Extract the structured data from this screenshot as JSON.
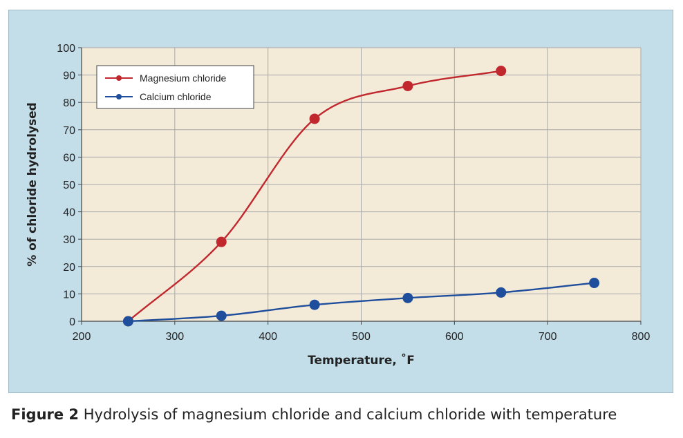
{
  "caption": {
    "label": "Figure 2",
    "text": "Hydrolysis of magnesium chloride and calcium chloride with temperature"
  },
  "colors": {
    "panel_bg": "#c3dde9",
    "plot_bg": "#f3ead8",
    "grid": "#a8a8a8",
    "magnesium": "#c0282e",
    "calcium": "#1f4e9c"
  },
  "chart_data": {
    "type": "line",
    "title": "",
    "xlabel": "Temperature, ˚F",
    "ylabel": "% of chloride hydrolysed",
    "xlim": [
      200,
      800
    ],
    "ylim": [
      0,
      100
    ],
    "x_ticks": [
      200,
      300,
      400,
      500,
      600,
      700,
      800
    ],
    "y_ticks": [
      0,
      10,
      20,
      30,
      40,
      50,
      60,
      70,
      80,
      90,
      100
    ],
    "grid": true,
    "legend_position": "top-left",
    "smooth": true,
    "series": [
      {
        "name": "Magnesium chloride",
        "color": "#c0282e",
        "x": [
          250,
          350,
          450,
          550,
          650
        ],
        "y": [
          0,
          29,
          74,
          86,
          91.5
        ]
      },
      {
        "name": "Calcium chloride",
        "color": "#1f4e9c",
        "x": [
          250,
          350,
          450,
          550,
          650,
          750
        ],
        "y": [
          0,
          2,
          6,
          8.5,
          10.5,
          14
        ]
      }
    ]
  }
}
